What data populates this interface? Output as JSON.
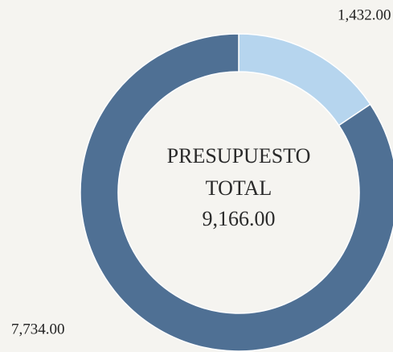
{
  "chart_data": {
    "type": "donut",
    "categories": [
      null,
      null
    ],
    "values": [
      1432,
      7734
    ],
    "value_labels": [
      "1,432.00",
      "7,734.00"
    ],
    "colors": [
      "#b6d5ee",
      "#4f7094"
    ],
    "center_title": [
      "PRESUPUESTO",
      "TOTAL"
    ],
    "total": 9166,
    "total_label": "9,166.00"
  }
}
